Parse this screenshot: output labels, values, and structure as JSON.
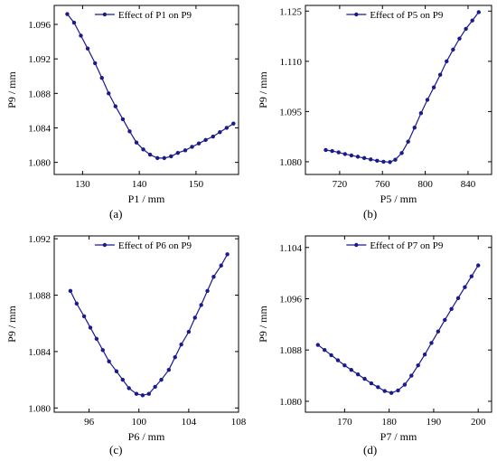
{
  "chart_data": [
    {
      "type": "line",
      "panel_label": "(a)",
      "xlabel": "P1 / mm",
      "ylabel": "P9 / mm",
      "xlim": [
        125,
        157.5
      ],
      "ylim": [
        1.0786,
        1.0982
      ],
      "xticks": [
        130,
        140,
        150
      ],
      "yticks": [
        1.08,
        1.084,
        1.088,
        1.092,
        1.096
      ],
      "ytick_labels": [
        "1.080",
        "1.084",
        "1.088",
        "1.092",
        "1.096"
      ],
      "legend_position": "top-center",
      "series": [
        {
          "name": "Effect of  P1 on P9",
          "x": [
            127.3,
            128.5,
            129.7,
            130.9,
            132.2,
            133.4,
            134.6,
            135.8,
            137.1,
            138.3,
            139.5,
            140.7,
            141.9,
            143.2,
            144.4,
            145.6,
            146.8,
            148.1,
            149.3,
            150.5,
            151.7,
            153.0,
            154.2,
            155.4,
            156.6
          ],
          "y": [
            1.0972,
            1.0962,
            1.0947,
            1.0932,
            1.0915,
            1.0898,
            1.088,
            1.0865,
            1.085,
            1.0836,
            1.0823,
            1.0815,
            1.0809,
            1.0805,
            1.0805,
            1.0807,
            1.0811,
            1.0814,
            1.0818,
            1.0822,
            1.0826,
            1.083,
            1.0835,
            1.084,
            1.0845
          ]
        }
      ]
    },
    {
      "type": "line",
      "panel_label": "(b)",
      "xlabel": "P5 / mm",
      "ylabel": "P9 / mm",
      "xlim": [
        688,
        862
      ],
      "ylim": [
        1.0762,
        1.1267
      ],
      "xticks": [
        720,
        760,
        800,
        840
      ],
      "yticks": [
        1.08,
        1.095,
        1.11,
        1.125
      ],
      "ytick_labels": [
        "1.080",
        "1.095",
        "1.110",
        "1.125"
      ],
      "legend_position": "top-center",
      "series": [
        {
          "name": "Effect of  P5 on P9",
          "x": [
            707,
            713,
            719,
            725,
            731,
            737,
            743,
            749,
            755,
            761,
            767,
            772,
            778,
            784,
            790,
            796,
            802,
            808,
            814,
            820,
            826,
            832,
            838,
            844,
            850
          ],
          "y": [
            1.0835,
            1.0832,
            1.0828,
            1.0823,
            1.0819,
            1.0815,
            1.0811,
            1.0807,
            1.0803,
            1.08,
            1.0799,
            1.0806,
            1.0826,
            1.086,
            1.0902,
            1.0945,
            1.0985,
            1.1022,
            1.106,
            1.11,
            1.1135,
            1.1168,
            1.1197,
            1.1222,
            1.1247
          ]
        }
      ]
    },
    {
      "type": "line",
      "panel_label": "(c)",
      "xlabel": "P6 / mm",
      "ylabel": "P9 / mm",
      "xlim": [
        93.2,
        108
      ],
      "ylim": [
        1.0797,
        1.0922
      ],
      "xticks": [
        96,
        100,
        104,
        108
      ],
      "yticks": [
        1.08,
        1.084,
        1.088,
        1.092
      ],
      "ytick_labels": [
        "1.080",
        "1.084",
        "1.088",
        "1.092"
      ],
      "legend_position": "top-center",
      "series": [
        {
          "name": "Effect of  P6 on P9",
          "x": [
            94.5,
            95.0,
            95.6,
            96.1,
            96.6,
            97.1,
            97.6,
            98.2,
            98.7,
            99.2,
            99.8,
            100.3,
            100.8,
            101.3,
            101.8,
            102.4,
            102.9,
            103.4,
            104.0,
            104.5,
            105.0,
            105.5,
            106.0,
            106.6,
            107.1
          ],
          "y": [
            1.0883,
            1.0874,
            1.0865,
            1.0857,
            1.0849,
            1.0841,
            1.0833,
            1.0826,
            1.082,
            1.0814,
            1.081,
            1.0809,
            1.081,
            1.0815,
            1.082,
            1.0827,
            1.0836,
            1.0845,
            1.0854,
            1.0864,
            1.0873,
            1.0883,
            1.0893,
            1.0901,
            1.0909
          ]
        }
      ]
    },
    {
      "type": "line",
      "panel_label": "(d)",
      "xlabel": "P7 / mm",
      "ylabel": "P9 / mm",
      "xlim": [
        161.2,
        203
      ],
      "ylim": [
        1.0783,
        1.1058
      ],
      "xticks": [
        170,
        180,
        190,
        200
      ],
      "yticks": [
        1.08,
        1.088,
        1.096,
        1.104
      ],
      "ytick_labels": [
        "1.080",
        "1.088",
        "1.096",
        "1.104"
      ],
      "legend_position": "top-center",
      "series": [
        {
          "name": "Effect of  P7 on P9",
          "x": [
            164.0,
            165.5,
            167.0,
            168.5,
            170.0,
            171.5,
            173.0,
            174.5,
            176.0,
            177.5,
            179.0,
            180.5,
            182.0,
            183.5,
            185.0,
            186.5,
            188.0,
            189.5,
            191.0,
            192.5,
            194.0,
            195.5,
            197.0,
            198.5,
            200.0
          ],
          "y": [
            1.0888,
            1.088,
            1.0872,
            1.0864,
            1.0856,
            1.0849,
            1.0842,
            1.0835,
            1.0828,
            1.0822,
            1.0816,
            1.0813,
            1.0817,
            1.0826,
            1.084,
            1.0856,
            1.0873,
            1.0891,
            1.0909,
            1.0927,
            1.0944,
            1.0961,
            1.0978,
            1.0995,
            1.1012
          ]
        }
      ]
    }
  ],
  "style": {
    "line_color": "#1a1a8c",
    "axis_color": "#000000"
  }
}
